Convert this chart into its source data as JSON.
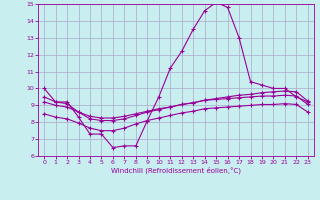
{
  "xlabel": "Windchill (Refroidissement éolien,°C)",
  "background_color": "#c8eef0",
  "line_color": "#990099",
  "grid_color": "#aaaacc",
  "xlim": [
    -0.5,
    23.5
  ],
  "ylim": [
    6,
    15
  ],
  "xticks": [
    0,
    1,
    2,
    3,
    4,
    5,
    6,
    7,
    8,
    9,
    10,
    11,
    12,
    13,
    14,
    15,
    16,
    17,
    18,
    19,
    20,
    21,
    22,
    23
  ],
  "yticks": [
    6,
    7,
    8,
    9,
    10,
    11,
    12,
    13,
    14,
    15
  ],
  "line1": [
    10.0,
    9.2,
    9.2,
    8.3,
    7.3,
    7.3,
    6.5,
    6.6,
    6.6,
    8.1,
    9.5,
    11.2,
    12.2,
    13.5,
    14.6,
    15.1,
    14.8,
    13.0,
    10.4,
    10.2,
    10.0,
    10.0,
    9.5,
    9.2
  ],
  "line2": [
    9.5,
    9.2,
    9.1,
    8.6,
    8.2,
    8.1,
    8.1,
    8.2,
    8.4,
    8.6,
    8.75,
    8.9,
    9.05,
    9.15,
    9.3,
    9.4,
    9.5,
    9.6,
    9.65,
    9.75,
    9.8,
    9.85,
    9.8,
    9.25
  ],
  "line3": [
    9.2,
    9.0,
    8.9,
    8.6,
    8.35,
    8.25,
    8.25,
    8.35,
    8.5,
    8.65,
    8.8,
    8.9,
    9.05,
    9.15,
    9.3,
    9.35,
    9.4,
    9.45,
    9.5,
    9.55,
    9.55,
    9.6,
    9.55,
    9.05
  ],
  "line4": [
    8.5,
    8.3,
    8.2,
    7.95,
    7.65,
    7.5,
    7.5,
    7.65,
    7.9,
    8.1,
    8.25,
    8.4,
    8.55,
    8.65,
    8.8,
    8.85,
    8.9,
    8.95,
    9.0,
    9.05,
    9.05,
    9.1,
    9.05,
    8.6
  ]
}
